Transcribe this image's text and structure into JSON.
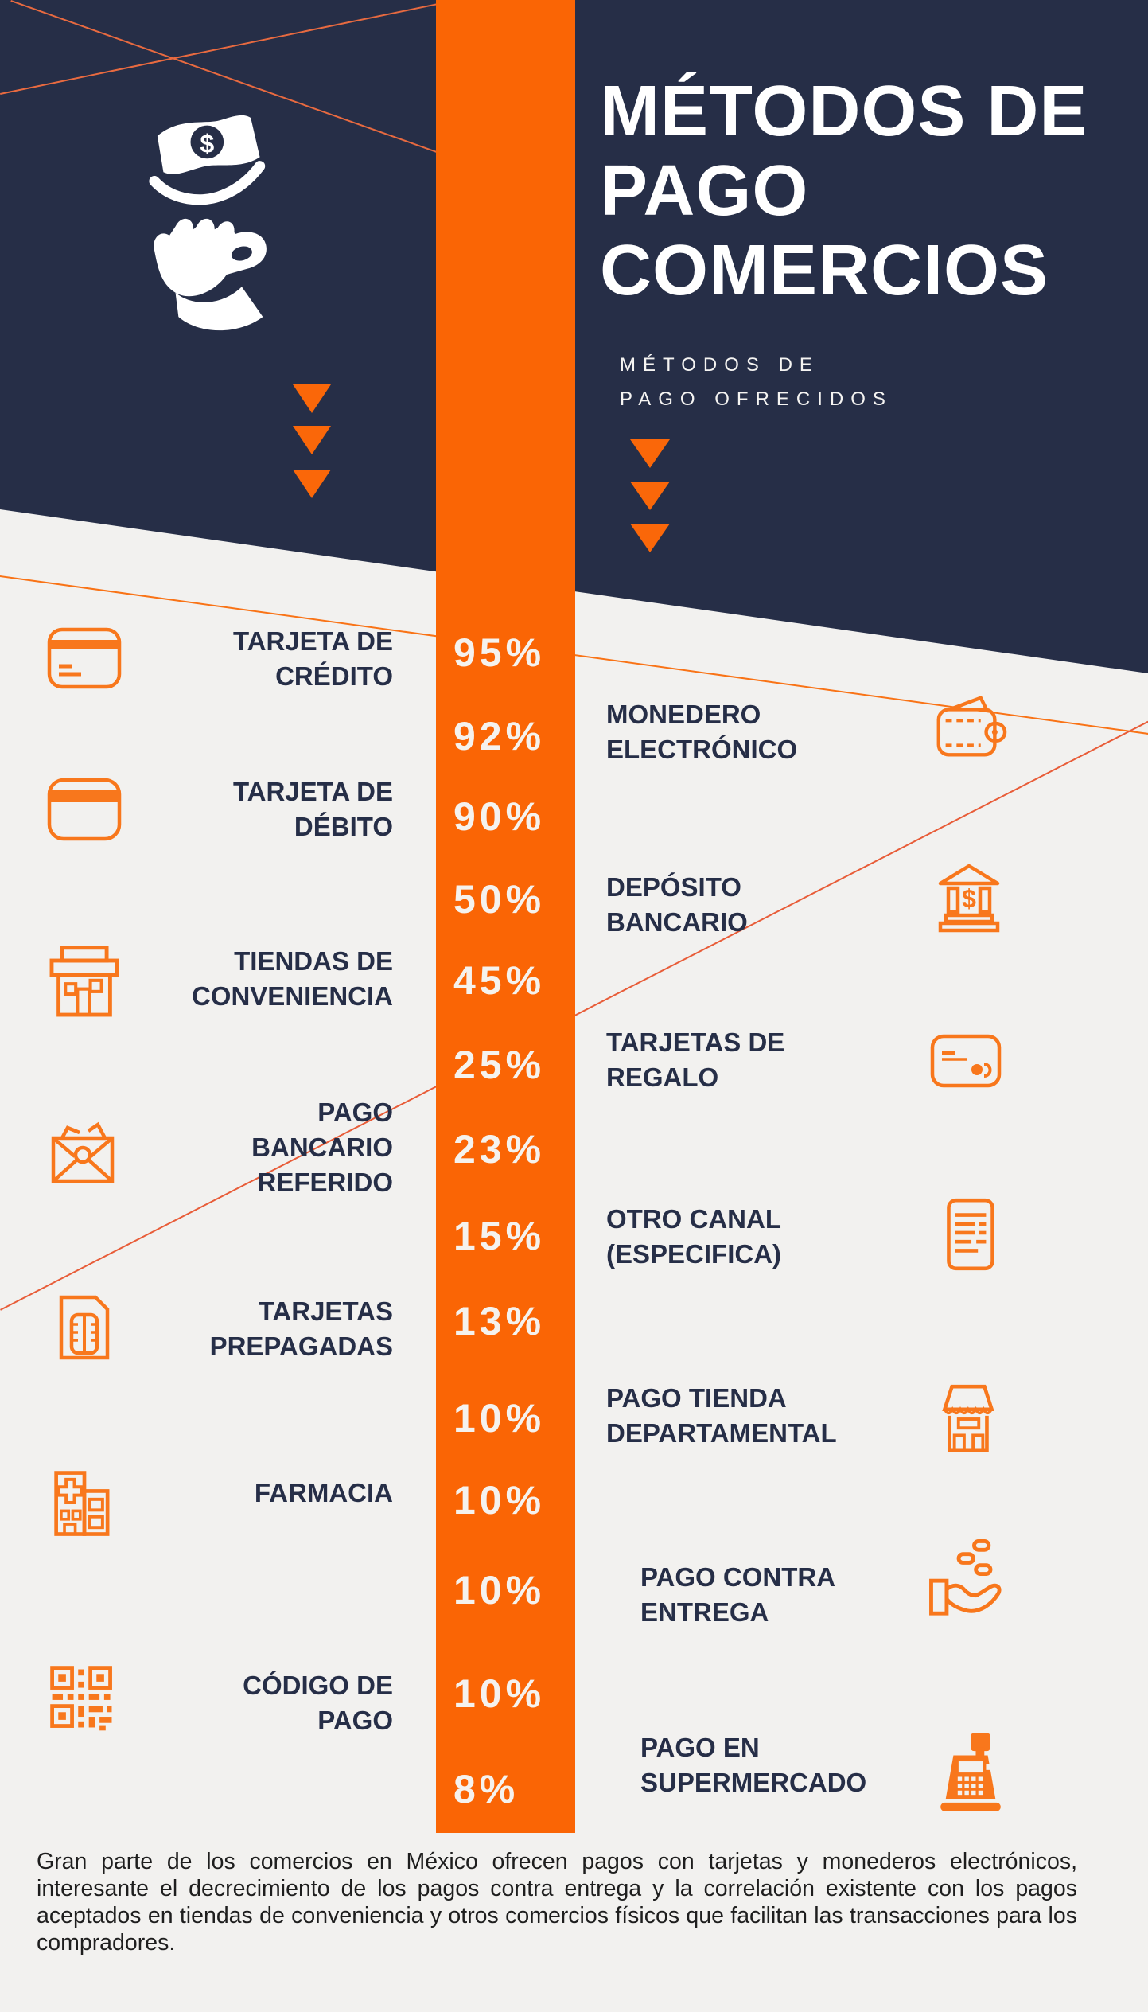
{
  "header": {
    "title_lines": [
      "MÉTODOS DE",
      "PAGO",
      "COMERCIOS"
    ],
    "subtitle_lines": [
      "MÉTODOS DE",
      "PAGO OFRECIDOS"
    ],
    "icon": "hand-receiving-money-icon"
  },
  "rows": [
    {
      "side": "left",
      "label_lines": [
        "TARJETA DE",
        "CRÉDITO"
      ],
      "icon": "credit-card-icon",
      "value": "95%"
    },
    {
      "side": "right",
      "label_lines": [
        "MONEDERO",
        "ELECTRÓNICO"
      ],
      "icon": "wallet-icon",
      "value": "92%"
    },
    {
      "side": "left",
      "label_lines": [
        "TARJETA DE",
        "DÉBITO"
      ],
      "icon": "debit-card-icon",
      "value": "90%"
    },
    {
      "side": "right",
      "label_lines": [
        "DEPÓSITO",
        "BANCARIO"
      ],
      "icon": "bank-icon",
      "value": "50%"
    },
    {
      "side": "left",
      "label_lines": [
        "TIENDAS DE",
        "CONVENIENCIA"
      ],
      "icon": "convenience-store-icon",
      "value": "45%"
    },
    {
      "side": "right",
      "label_lines": [
        "TARJETAS DE",
        "REGALO"
      ],
      "icon": "gift-card-icon",
      "value": "25%"
    },
    {
      "side": "left",
      "label_lines": [
        "PAGO",
        "BANCARIO",
        "REFERIDO"
      ],
      "icon": "payment-envelope-icon",
      "value": "23%"
    },
    {
      "side": "right",
      "label_lines": [
        "OTRO CANAL",
        "(ESPECIFICA)"
      ],
      "icon": "document-icon",
      "value": "15%"
    },
    {
      "side": "left",
      "label_lines": [
        "TARJETAS",
        "PREPAGADAS"
      ],
      "icon": "prepaid-card-icon",
      "value": "13%"
    },
    {
      "side": "right",
      "label_lines": [
        "PAGO TIENDA",
        "DEPARTAMENTAL"
      ],
      "icon": "department-store-icon",
      "value": "10%"
    },
    {
      "side": "left",
      "label_lines": [
        "FARMACIA"
      ],
      "icon": "pharmacy-icon",
      "value": "10%"
    },
    {
      "side": "right",
      "label_lines": [
        "PAGO CONTRA",
        "ENTREGA"
      ],
      "icon": "hand-coins-icon",
      "value": "10%"
    },
    {
      "side": "left",
      "label_lines": [
        "CÓDIGO DE",
        "PAGO"
      ],
      "icon": "qr-code-icon",
      "value": "10%"
    },
    {
      "side": "right",
      "label_lines": [
        "PAGO EN",
        "SUPERMERCADO"
      ],
      "icon": "cash-register-icon",
      "value": "8%"
    }
  ],
  "footer": {
    "text": "Gran parte de los comercios en México ofrecen pagos con tarjetas y monederos electrónicos, interesante el decrecimiento de los pagos contra entrega y la correlación existente con los pagos aceptados en tiendas de conveniencia y otros comercios físicos que facilitan las transacciones para los compradores."
  },
  "colors": {
    "navy": "#262E47",
    "orange_stripe": "#FA6505",
    "orange_triangle": "#FA6709",
    "orange_icon": "#F8771C",
    "background": "#F2F1EF",
    "percent_text": "#F5F2EE",
    "footer_text": "#1E1E1E"
  },
  "chart_data": {
    "type": "bar",
    "title": "MÉTODOS DE PAGO COMERCIOS",
    "subtitle": "MÉTODOS DE PAGO OFRECIDOS",
    "unit": "%",
    "categories": [
      "TARJETA DE CRÉDITO",
      "MONEDERO ELECTRÓNICO",
      "TARJETA DE DÉBITO",
      "DEPÓSITO BANCARIO",
      "TIENDAS DE CONVENIENCIA",
      "TARJETAS DE REGALO",
      "PAGO BANCARIO REFERIDO",
      "OTRO CANAL (ESPECIFICA)",
      "TARJETAS PREPAGADAS",
      "PAGO TIENDA DEPARTAMENTAL",
      "FARMACIA",
      "PAGO CONTRA ENTREGA",
      "CÓDIGO DE PAGO",
      "PAGO EN SUPERMERCADO"
    ],
    "values": [
      95,
      92,
      90,
      50,
      45,
      25,
      23,
      15,
      13,
      10,
      10,
      10,
      10,
      8
    ],
    "legend_position": "none",
    "grid": false
  }
}
